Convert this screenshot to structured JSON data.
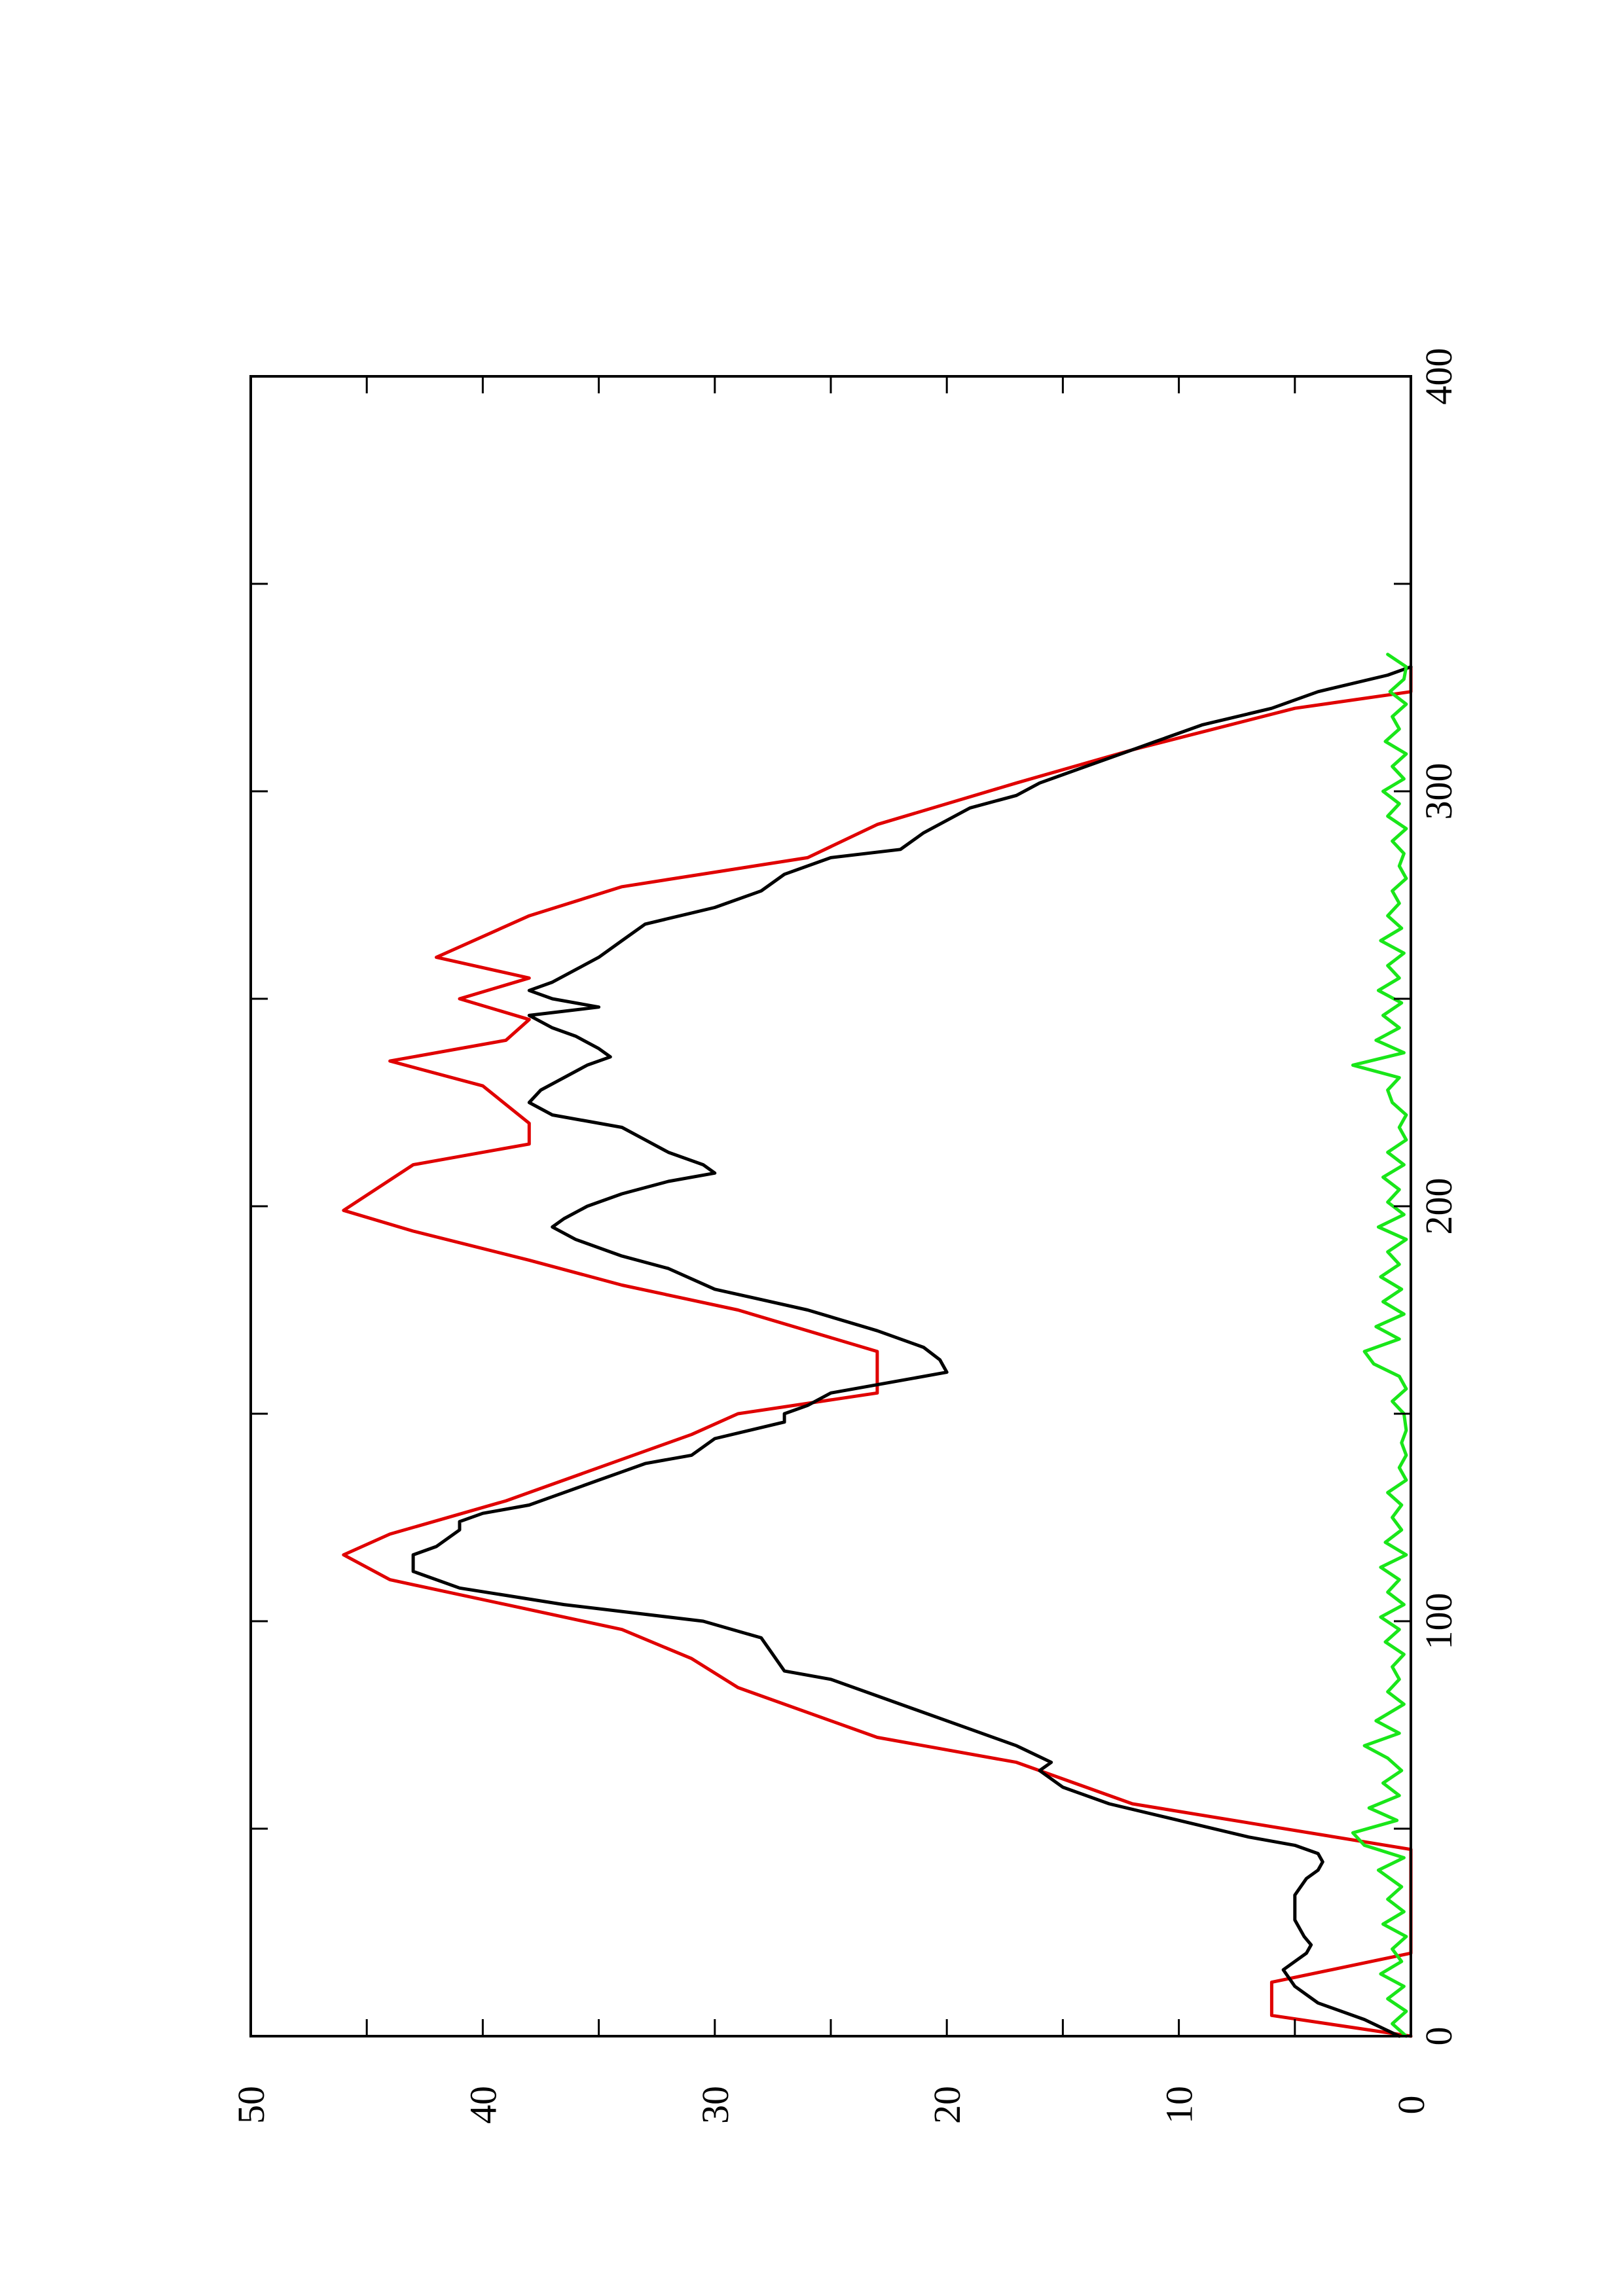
{
  "chart_data": {
    "type": "line",
    "orientation": "rotated-90-ccw",
    "title": "",
    "xlabel": "",
    "ylabel": "",
    "xlim": [
      0,
      400
    ],
    "ylim": [
      0,
      50
    ],
    "x_ticks": [
      0,
      50,
      100,
      150,
      200,
      250,
      300,
      350,
      400
    ],
    "x_tick_labels": [
      "0",
      "",
      "100",
      "",
      "200",
      "",
      "300",
      "",
      "400"
    ],
    "y_ticks": [
      0,
      5,
      10,
      15,
      20,
      25,
      30,
      35,
      40,
      45,
      50
    ],
    "y_tick_labels": [
      "0",
      "",
      "10",
      "",
      "20",
      "",
      "30",
      "",
      "40",
      "",
      "50"
    ],
    "grid": false,
    "legend": "none",
    "series": [
      {
        "color": "#e00000",
        "x": [
          0,
          5,
          5,
          13,
          13,
          20,
          20,
          45,
          45,
          56,
          56,
          66,
          66,
          72,
          72,
          84,
          84,
          91,
          91,
          98,
          98,
          104,
          104,
          110,
          110,
          116,
          116,
          121,
          121,
          129,
          129,
          139,
          139,
          145,
          145,
          150,
          150,
          155,
          155,
          165,
          165,
          175,
          175,
          181,
          181,
          187,
          187,
          194,
          194,
          199,
          199,
          210,
          210,
          215,
          215,
          220,
          220,
          229,
          229,
          235,
          235,
          240,
          240,
          245,
          245,
          250,
          250,
          255,
          255,
          260,
          260,
          270,
          270,
          277,
          277,
          284,
          284,
          292,
          292,
          302,
          302,
          310,
          310,
          320,
          320,
          324,
          324,
          330
        ],
        "y": [
          0,
          0,
          6,
          6,
          0,
          0,
          0,
          0,
          0,
          0,
          12,
          12,
          17,
          17,
          23,
          23,
          29,
          29,
          31,
          31,
          34,
          34,
          39,
          39,
          44,
          44,
          46,
          46,
          44,
          44,
          39,
          39,
          34,
          34,
          31,
          31,
          29,
          29,
          23,
          23,
          29,
          29,
          34,
          34,
          38,
          38,
          43,
          43,
          46,
          46,
          43,
          43,
          38,
          38,
          40,
          40,
          44,
          44,
          39,
          39,
          38,
          38,
          41,
          41,
          38,
          38,
          42,
          42,
          38,
          38,
          34,
          34,
          26,
          26,
          23,
          23,
          17,
          17,
          12,
          12,
          5,
          5,
          0,
          0,
          0,
          0,
          0,
          0
        ],
        "points": [
          [
            0,
            0
          ],
          [
            5,
            6
          ],
          [
            13,
            6
          ],
          [
            20,
            0
          ],
          [
            45,
            0
          ],
          [
            56,
            12
          ],
          [
            66,
            17
          ],
          [
            72,
            23
          ],
          [
            84,
            29
          ],
          [
            91,
            31
          ],
          [
            98,
            34
          ],
          [
            104,
            39
          ],
          [
            110,
            44
          ],
          [
            116,
            46
          ],
          [
            121,
            44
          ],
          [
            129,
            39
          ],
          [
            139,
            34
          ],
          [
            145,
            31
          ],
          [
            150,
            29
          ],
          [
            155,
            23
          ],
          [
            165,
            23
          ],
          [
            175,
            29
          ],
          [
            181,
            34
          ],
          [
            187,
            38
          ],
          [
            194,
            43
          ],
          [
            199,
            46
          ],
          [
            210,
            43
          ],
          [
            215,
            38
          ],
          [
            220,
            38
          ],
          [
            229,
            40
          ],
          [
            235,
            44
          ],
          [
            240,
            39
          ],
          [
            245,
            38
          ],
          [
            250,
            41
          ],
          [
            255,
            38
          ],
          [
            260,
            42
          ],
          [
            270,
            38
          ],
          [
            277,
            34
          ],
          [
            284,
            26
          ],
          [
            292,
            23
          ],
          [
            302,
            17
          ],
          [
            310,
            12
          ],
          [
            320,
            5
          ],
          [
            324,
            0
          ],
          [
            330,
            0
          ]
        ]
      },
      {
        "color": "#000000",
        "points": [
          [
            0,
            0.5
          ],
          [
            4,
            2
          ],
          [
            8,
            4
          ],
          [
            12,
            5
          ],
          [
            16,
            5.5
          ],
          [
            18,
            5
          ],
          [
            20,
            4.5
          ],
          [
            22,
            4.3
          ],
          [
            24,
            4.6
          ],
          [
            28,
            5
          ],
          [
            34,
            5
          ],
          [
            38,
            4.5
          ],
          [
            40,
            4
          ],
          [
            42,
            3.8
          ],
          [
            44,
            4
          ],
          [
            46,
            5
          ],
          [
            48,
            7
          ],
          [
            52,
            10
          ],
          [
            56,
            13
          ],
          [
            60,
            15
          ],
          [
            64,
            16
          ],
          [
            66,
            15.5
          ],
          [
            70,
            17
          ],
          [
            74,
            19
          ],
          [
            78,
            21
          ],
          [
            82,
            23
          ],
          [
            86,
            25
          ],
          [
            88,
            27
          ],
          [
            92,
            27.5
          ],
          [
            96,
            28
          ],
          [
            100,
            30.5
          ],
          [
            104,
            36.5
          ],
          [
            108,
            41
          ],
          [
            112,
            43
          ],
          [
            116,
            43
          ],
          [
            118,
            42
          ],
          [
            122,
            41
          ],
          [
            124,
            41
          ],
          [
            126,
            40
          ],
          [
            128,
            38
          ],
          [
            130,
            37
          ],
          [
            132,
            36
          ],
          [
            134,
            35
          ],
          [
            136,
            34
          ],
          [
            138,
            33
          ],
          [
            140,
            31
          ],
          [
            144,
            30
          ],
          [
            148,
            27
          ],
          [
            150,
            27
          ],
          [
            152,
            26
          ],
          [
            155,
            25
          ],
          [
            158,
            22
          ],
          [
            160,
            20
          ],
          [
            163,
            20.3
          ],
          [
            166,
            21
          ],
          [
            170,
            23
          ],
          [
            175,
            26
          ],
          [
            180,
            30
          ],
          [
            185,
            32
          ],
          [
            188,
            34
          ],
          [
            192,
            36
          ],
          [
            195,
            37
          ],
          [
            197,
            36.5
          ],
          [
            200,
            35.5
          ],
          [
            203,
            34
          ],
          [
            206,
            32
          ],
          [
            208,
            30
          ],
          [
            210,
            30.5
          ],
          [
            213,
            32
          ],
          [
            216,
            33
          ],
          [
            219,
            34
          ],
          [
            222,
            37
          ],
          [
            225,
            38
          ],
          [
            228,
            37.5
          ],
          [
            231,
            36.5
          ],
          [
            234,
            35.5
          ],
          [
            236,
            34.5
          ],
          [
            238,
            35
          ],
          [
            241,
            36
          ],
          [
            243,
            37
          ],
          [
            246,
            38
          ],
          [
            248,
            35
          ],
          [
            250,
            37
          ],
          [
            252,
            38
          ],
          [
            254,
            37
          ],
          [
            257,
            36
          ],
          [
            260,
            35
          ],
          [
            264,
            34
          ],
          [
            268,
            33
          ],
          [
            272,
            30
          ],
          [
            276,
            28
          ],
          [
            280,
            27
          ],
          [
            284,
            25
          ],
          [
            286,
            22
          ],
          [
            290,
            21
          ],
          [
            293,
            20
          ],
          [
            296,
            19
          ],
          [
            299,
            17
          ],
          [
            302,
            16
          ],
          [
            304,
            15
          ],
          [
            308,
            13
          ],
          [
            312,
            11
          ],
          [
            316,
            9
          ],
          [
            320,
            6
          ],
          [
            324,
            4
          ],
          [
            328,
            1
          ],
          [
            330,
            0
          ]
        ]
      },
      {
        "color": "#19e619",
        "points": [
          [
            0,
            0.2
          ],
          [
            3,
            0.8
          ],
          [
            6,
            0.2
          ],
          [
            9,
            1
          ],
          [
            12,
            0.3
          ],
          [
            15,
            1.3
          ],
          [
            18,
            0.4
          ],
          [
            21,
            0.8
          ],
          [
            24,
            0.2
          ],
          [
            27,
            1.2
          ],
          [
            30,
            0.3
          ],
          [
            33,
            1
          ],
          [
            36,
            0.4
          ],
          [
            40,
            1.4
          ],
          [
            43,
            0.3
          ],
          [
            46,
            2
          ],
          [
            49,
            2.5
          ],
          [
            52,
            0.6
          ],
          [
            55,
            1.8
          ],
          [
            58,
            0.5
          ],
          [
            61,
            1.2
          ],
          [
            64,
            0.4
          ],
          [
            67,
            1
          ],
          [
            70,
            2
          ],
          [
            73,
            0.5
          ],
          [
            76,
            1.5
          ],
          [
            80,
            0.3
          ],
          [
            83,
            1
          ],
          [
            86,
            0.5
          ],
          [
            89,
            0.8
          ],
          [
            92,
            0.3
          ],
          [
            95,
            1.1
          ],
          [
            98,
            0.5
          ],
          [
            101,
            1.3
          ],
          [
            104,
            0.3
          ],
          [
            107,
            1
          ],
          [
            110,
            0.5
          ],
          [
            113,
            1.3
          ],
          [
            116,
            0.2
          ],
          [
            119,
            1.1
          ],
          [
            122,
            0.4
          ],
          [
            125,
            0.8
          ],
          [
            128,
            0.4
          ],
          [
            131,
            1
          ],
          [
            134,
            0.2
          ],
          [
            137,
            0.5
          ],
          [
            140,
            0.2
          ],
          [
            143,
            0.4
          ],
          [
            146,
            0.2
          ],
          [
            150,
            0.3
          ],
          [
            153,
            0.8
          ],
          [
            156,
            0.2
          ],
          [
            159,
            0.5
          ],
          [
            162,
            1.6
          ],
          [
            165,
            2
          ],
          [
            168,
            0.5
          ],
          [
            171,
            1.5
          ],
          [
            174,
            0.3
          ],
          [
            177,
            1.2
          ],
          [
            180,
            0.4
          ],
          [
            183,
            1.3
          ],
          [
            186,
            0.5
          ],
          [
            189,
            1
          ],
          [
            192,
            0.2
          ],
          [
            195,
            1.4
          ],
          [
            198,
            0.3
          ],
          [
            201,
            1
          ],
          [
            204,
            0.5
          ],
          [
            207,
            1.2
          ],
          [
            210,
            0.3
          ],
          [
            213,
            1
          ],
          [
            216,
            0.2
          ],
          [
            219,
            0.5
          ],
          [
            222,
            0.2
          ],
          [
            225,
            0.8
          ],
          [
            228,
            1
          ],
          [
            231,
            0.5
          ],
          [
            234,
            2.5
          ],
          [
            237,
            0.3
          ],
          [
            240,
            1.5
          ],
          [
            243,
            0.5
          ],
          [
            246,
            1.2
          ],
          [
            249,
            0.4
          ],
          [
            252,
            1.4
          ],
          [
            255,
            0.5
          ],
          [
            258,
            1
          ],
          [
            261,
            0.3
          ],
          [
            264,
            1.3
          ],
          [
            267,
            0.4
          ],
          [
            270,
            1
          ],
          [
            273,
            0.5
          ],
          [
            276,
            0.8
          ],
          [
            279,
            0.2
          ],
          [
            282,
            0.5
          ],
          [
            285,
            0.3
          ],
          [
            288,
            0.8
          ],
          [
            291,
            0.2
          ],
          [
            294,
            1
          ],
          [
            297,
            0.5
          ],
          [
            300,
            1.2
          ],
          [
            303,
            0.3
          ],
          [
            306,
            0.8
          ],
          [
            309,
            0.2
          ],
          [
            312,
            1.1
          ],
          [
            315,
            0.5
          ],
          [
            318,
            0.8
          ],
          [
            321,
            0.2
          ],
          [
            324,
            0.9
          ],
          [
            327,
            0.3
          ],
          [
            330,
            0.2
          ],
          [
            333,
            1
          ]
        ]
      }
    ]
  }
}
